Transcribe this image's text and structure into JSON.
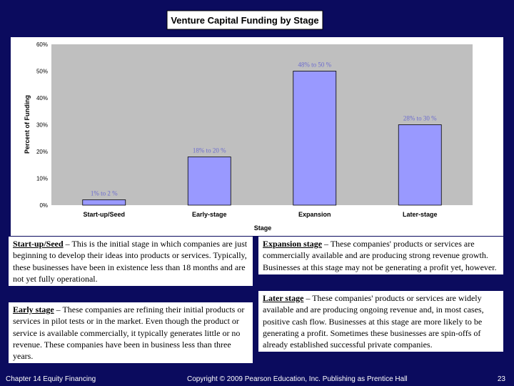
{
  "chart_data": {
    "type": "bar",
    "title": "Venture Capital Funding by Stage",
    "xlabel": "Stage",
    "ylabel": "Percent of Funding",
    "ylim": [
      0,
      60
    ],
    "yticks": [
      "0%",
      "10%",
      "20%",
      "30%",
      "40%",
      "50%",
      "60%"
    ],
    "categories": [
      "Start-up/Seed",
      "Early-stage",
      "Expansion",
      "Later-stage"
    ],
    "values": [
      2,
      18,
      50,
      30
    ],
    "data_labels": [
      "1% to 2 %",
      "18% to 20 %",
      "48% to 50 %",
      "28% to 30 %"
    ],
    "grid": false,
    "colors": {
      "bar": "#9999ff",
      "plot_area": "#bfbfbf",
      "panel": "#ffffff",
      "label": "#6b6bcf"
    }
  },
  "descriptions": {
    "start_up": {
      "term": "Start-up/Seed",
      "text": " – This is the initial stage in which companies are just beginning to develop their ideas into products or services. Typically, these businesses have been in existence less than 18 months and are not yet fully operational."
    },
    "early": {
      "term": "Early stage",
      "text": " – These companies are refining their initial products or services in pilot tests or in the market. Even though the product or service is available commercially, it typically generates little or no revenue. These companies have been in business less than three years."
    },
    "expansion": {
      "term": "Expansion stage",
      "text": " – These companies' products or services are commercially available and are producing strong revenue growth. Businesses at this stage may not be generating a profit yet, however."
    },
    "later": {
      "term": "Later stage",
      "text": " – These companies' products or services are widely available and are producing ongoing revenue and, in most cases, positive cash flow. Businesses at this stage are more likely to be generating a profit. Sometimes these businesses are spin-offs of already established successful private companies."
    }
  },
  "footer": {
    "chapter": "Chapter 14 Equity Financing",
    "copyright": "Copyright © 2009 Pearson Education, Inc. Publishing as Prentice Hall",
    "page": "23"
  },
  "theme": {
    "background": "#0b0b5e"
  }
}
